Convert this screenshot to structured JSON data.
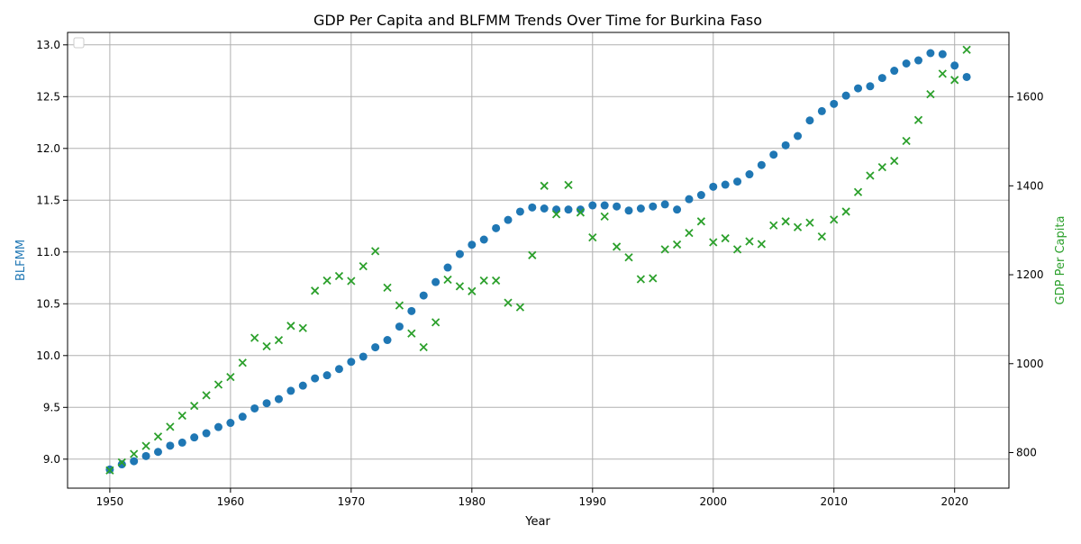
{
  "chart_data": {
    "type": "scatter",
    "title": "GDP Per Capita and BLFMM Trends Over Time for Burkina Faso",
    "xlabel": "Year",
    "ylabel_left": "BLFMM",
    "ylabel_right": "GDP Per Capita",
    "xlim": [
      1946.5,
      2024.5
    ],
    "ylim_left": [
      8.72,
      13.12
    ],
    "ylim_right": [
      720,
      1745
    ],
    "x_ticks": [
      1950,
      1960,
      1970,
      1980,
      1990,
      2000,
      2010,
      2020
    ],
    "y_left_ticks": [
      "9.0",
      "9.5",
      "10.0",
      "10.5",
      "11.0",
      "11.5",
      "12.0",
      "12.5",
      "13.0"
    ],
    "y_right_ticks": [
      800,
      1000,
      1200,
      1400,
      1600
    ],
    "grid": true,
    "legend": "top-left (empty)",
    "colors": {
      "blfmm": "#1f77b4",
      "gdp": "#2ca02c"
    },
    "x": [
      1950,
      1951,
      1952,
      1953,
      1954,
      1955,
      1956,
      1957,
      1958,
      1959,
      1960,
      1961,
      1962,
      1963,
      1964,
      1965,
      1966,
      1967,
      1968,
      1969,
      1970,
      1971,
      1972,
      1973,
      1974,
      1975,
      1976,
      1977,
      1978,
      1979,
      1980,
      1981,
      1982,
      1983,
      1984,
      1985,
      1986,
      1987,
      1988,
      1989,
      1990,
      1991,
      1992,
      1993,
      1994,
      1995,
      1996,
      1997,
      1998,
      1999,
      2000,
      2001,
      2002,
      2003,
      2004,
      2005,
      2006,
      2007,
      2008,
      2009,
      2010,
      2011,
      2012,
      2013,
      2014,
      2015,
      2016,
      2017,
      2018,
      2019,
      2020,
      2021
    ],
    "series": [
      {
        "name": "BLFMM",
        "axis": "left",
        "marker": "circle",
        "values": [
          8.9,
          8.95,
          8.98,
          9.03,
          9.07,
          9.13,
          9.16,
          9.21,
          9.25,
          9.31,
          9.35,
          9.41,
          9.49,
          9.54,
          9.58,
          9.66,
          9.71,
          9.78,
          9.81,
          9.87,
          9.94,
          9.99,
          10.08,
          10.15,
          10.28,
          10.43,
          10.58,
          10.71,
          10.85,
          10.98,
          11.07,
          11.12,
          11.23,
          11.31,
          11.39,
          11.43,
          11.42,
          11.41,
          11.41,
          11.41,
          11.45,
          11.45,
          11.44,
          11.4,
          11.42,
          11.44,
          11.46,
          11.41,
          11.51,
          11.55,
          11.63,
          11.65,
          11.68,
          11.75,
          11.84,
          11.94,
          12.03,
          12.12,
          12.27,
          12.36,
          12.43,
          12.51,
          12.58,
          12.6,
          12.68,
          12.75,
          12.82,
          12.85,
          12.92,
          12.91,
          12.8,
          12.69
        ]
      },
      {
        "name": "GDP Per Capita",
        "axis": "right",
        "marker": "x",
        "values": [
          760,
          778,
          797,
          815,
          836,
          858,
          883,
          905,
          929,
          953,
          970,
          1002,
          1058,
          1039,
          1053,
          1085,
          1080,
          1164,
          1187,
          1197,
          1186,
          1219,
          1253,
          1171,
          1131,
          1068,
          1037,
          1093,
          1189,
          1174,
          1163,
          1187,
          1187,
          1137,
          1127,
          1244,
          1400,
          1336,
          1402,
          1340,
          1284,
          1331,
          1263,
          1239,
          1190,
          1192,
          1257,
          1268,
          1294,
          1320,
          1273,
          1282,
          1257,
          1275,
          1269,
          1311,
          1320,
          1307,
          1317,
          1286,
          1324,
          1342,
          1386,
          1423,
          1442,
          1456,
          1501,
          1548,
          1606,
          1652,
          1638,
          1706
        ]
      }
    ]
  }
}
